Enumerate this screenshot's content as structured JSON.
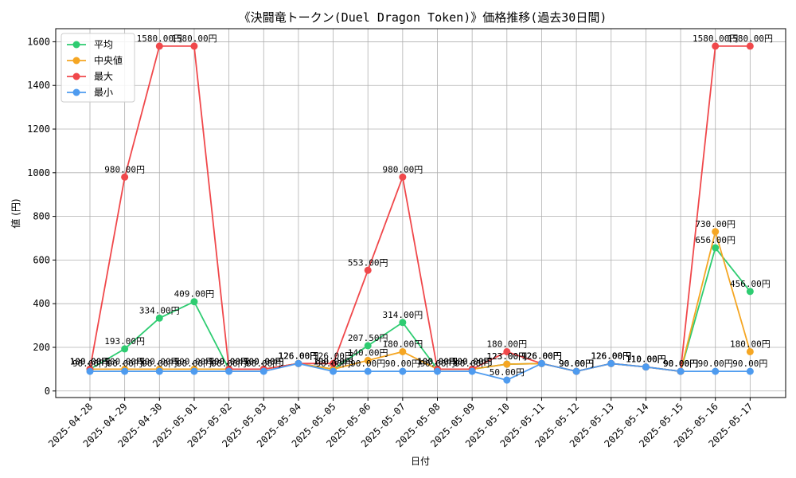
{
  "chart_data": {
    "type": "line",
    "title": "《決闘竜トークン(Duel Dragon Token)》価格推移(過去30日間)",
    "xlabel": "日付",
    "ylabel": "値 (円)",
    "ylim": [
      -30,
      1660
    ],
    "yticks": [
      0,
      200,
      400,
      600,
      800,
      1000,
      1200,
      1400,
      1600
    ],
    "grid": true,
    "legend_position": "top-left",
    "label_suffix": "円",
    "categories": [
      "2025-04-28",
      "2025-04-29",
      "2025-04-30",
      "2025-05-01",
      "2025-05-02",
      "2025-05-03",
      "2025-05-04",
      "2025-05-05",
      "2025-05-06",
      "2025-05-07",
      "2025-05-08",
      "2025-05-09",
      "2025-05-10",
      "2025-05-11",
      "2025-05-12",
      "2025-05-13",
      "2025-05-14",
      "2025-05-15",
      "2025-05-16",
      "2025-05-17"
    ],
    "series": [
      {
        "name": "平均",
        "color": "#2ecc71",
        "values": [
          100,
          193,
          334,
          409,
          100,
          100,
          126,
          100,
          207.5,
          314,
          100,
          100,
          123,
          126,
          90,
          126,
          110,
          90,
          656,
          456
        ]
      },
      {
        "name": "中央値",
        "color": "#f5a623",
        "values": [
          100,
          100,
          100,
          100,
          100,
          100,
          126,
          100,
          140,
          180,
          100,
          100,
          123,
          126,
          90,
          126,
          110,
          90,
          730,
          180
        ]
      },
      {
        "name": "最大",
        "color": "#f0484b",
        "values": [
          100,
          980,
          1580,
          1580,
          100,
          100,
          126,
          126,
          553,
          980,
          100,
          100,
          180,
          126,
          90,
          126,
          110,
          90,
          1580,
          1580
        ]
      },
      {
        "name": "最小",
        "color": "#4e9bef",
        "values": [
          90,
          90,
          90,
          90,
          90,
          90,
          126,
          90,
          90,
          90,
          90,
          90,
          50,
          126,
          90,
          126,
          110,
          90,
          90,
          90
        ]
      }
    ]
  }
}
